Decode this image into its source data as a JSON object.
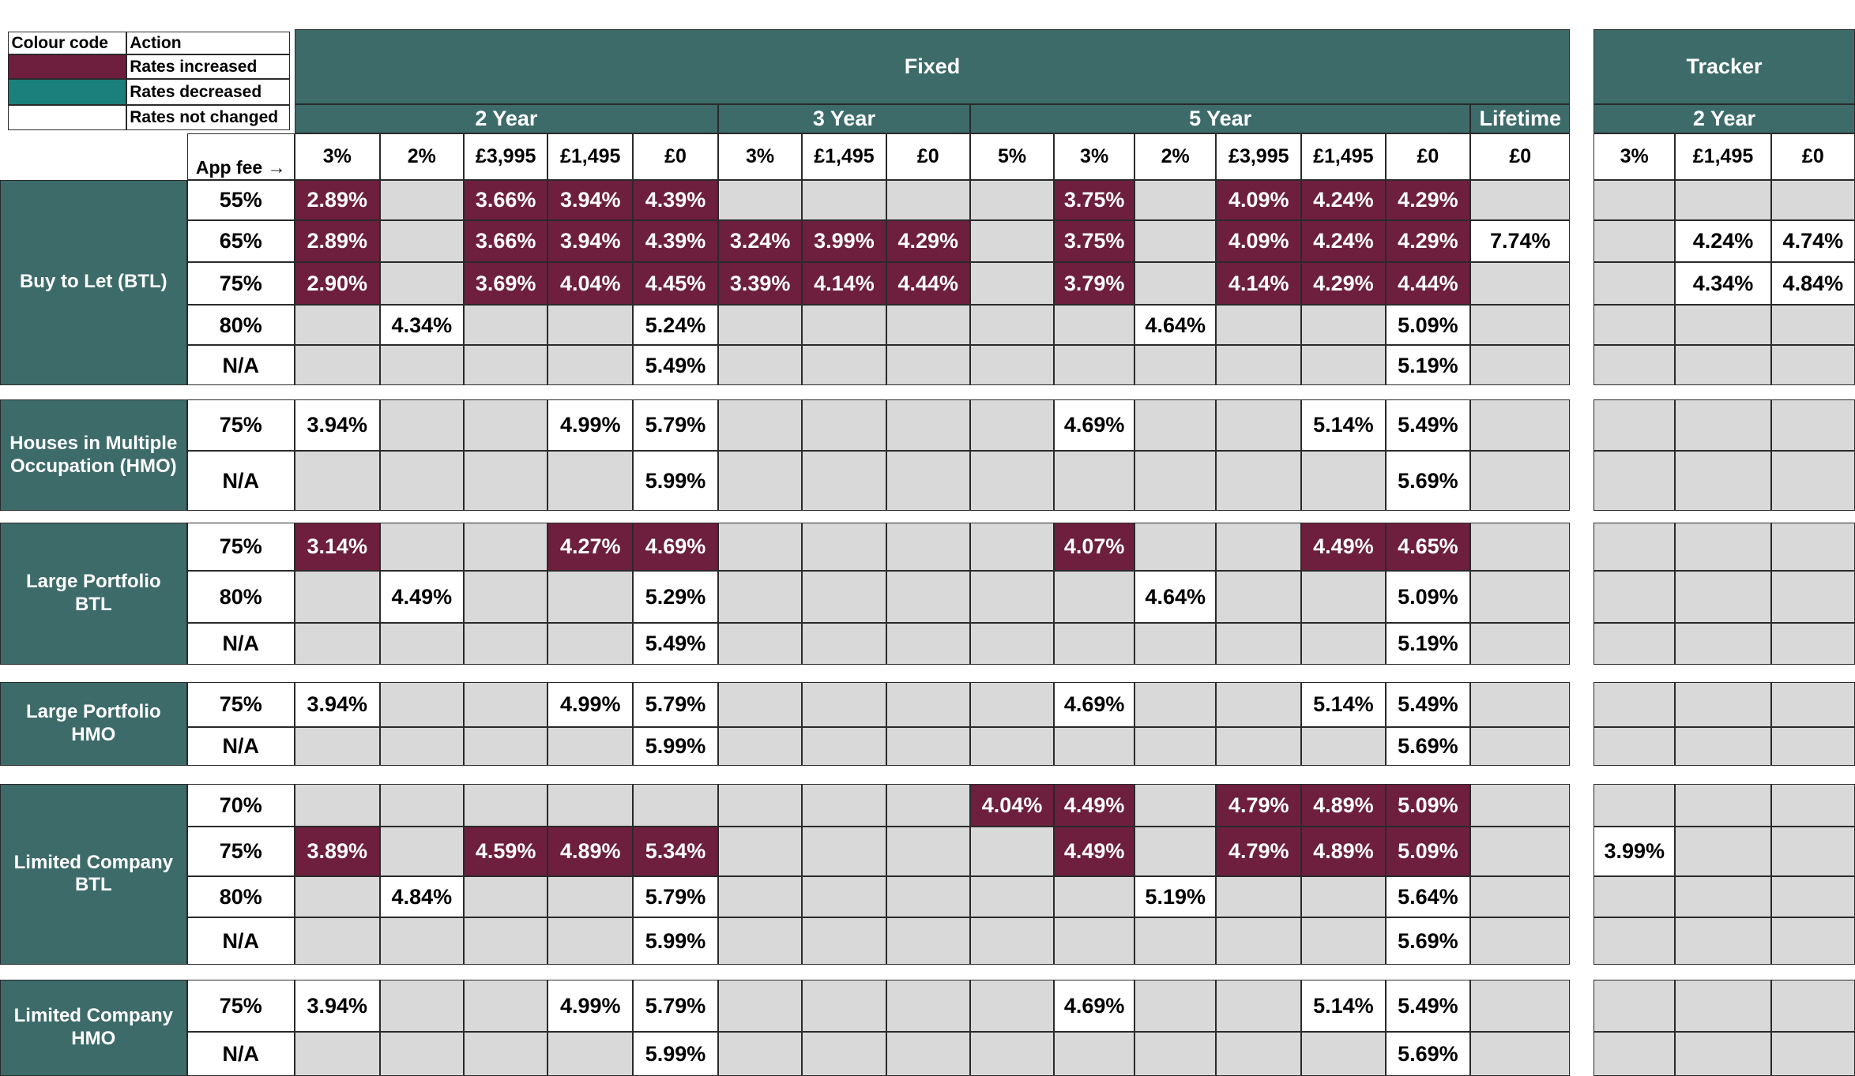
{
  "legend": {
    "columns": [
      "Colour code",
      "Action"
    ],
    "items": [
      {
        "color": "#6d1f3d",
        "label": "Rates increased"
      },
      {
        "color": "#1b7f7c",
        "label": "Rates decreased"
      },
      {
        "color": "#ffffff",
        "label": "Rates not changed"
      }
    ]
  },
  "header": {
    "fee_label": "App fee →",
    "sections": [
      {
        "title": "Fixed",
        "terms": [
          {
            "label": "2 Year",
            "fees": [
              "3%",
              "2%",
              "£3,995",
              "£1,495",
              "£0"
            ]
          },
          {
            "label": "3 Year",
            "fees": [
              "3%",
              "£1,495",
              "£0"
            ]
          },
          {
            "label": "5 Year",
            "fees": [
              "5%",
              "3%",
              "2%",
              "£3,995",
              "£1,495",
              "£0"
            ]
          },
          {
            "label": "Lifetime",
            "fees": [
              "£0"
            ]
          }
        ]
      },
      {
        "title": "Tracker",
        "terms": [
          {
            "label": "2 Year",
            "fees": [
              "3%",
              "£1,495",
              "£0"
            ]
          }
        ]
      }
    ]
  },
  "groups": [
    {
      "label": "Buy to Let (BTL)",
      "rows": [
        {
          "ltv": "55%",
          "cells": [
            {
              "rate": "2.89%",
              "fill": "#6d1f3d"
            },
            null,
            {
              "rate": "3.66%",
              "fill": "#6d1f3d"
            },
            {
              "rate": "3.94%",
              "fill": "#6d1f3d"
            },
            {
              "rate": "4.39%",
              "fill": "#6d1f3d"
            },
            null,
            null,
            null,
            null,
            {
              "rate": "3.75%",
              "fill": "#6d1f3d"
            },
            null,
            {
              "rate": "4.09%",
              "fill": "#6d1f3d"
            },
            {
              "rate": "4.24%",
              "fill": "#6d1f3d"
            },
            {
              "rate": "4.29%",
              "fill": "#6d1f3d"
            },
            null,
            null,
            null,
            null
          ]
        },
        {
          "ltv": "65%",
          "cells": [
            {
              "rate": "2.89%",
              "fill": "#6d1f3d"
            },
            null,
            {
              "rate": "3.66%",
              "fill": "#6d1f3d"
            },
            {
              "rate": "3.94%",
              "fill": "#6d1f3d"
            },
            {
              "rate": "4.39%",
              "fill": "#6d1f3d"
            },
            {
              "rate": "3.24%",
              "fill": "#6d1f3d"
            },
            {
              "rate": "3.99%",
              "fill": "#6d1f3d"
            },
            {
              "rate": "4.29%",
              "fill": "#6d1f3d"
            },
            null,
            {
              "rate": "3.75%",
              "fill": "#6d1f3d"
            },
            null,
            {
              "rate": "4.09%",
              "fill": "#6d1f3d"
            },
            {
              "rate": "4.24%",
              "fill": "#6d1f3d"
            },
            {
              "rate": "4.29%",
              "fill": "#6d1f3d"
            },
            {
              "rate": "7.74%",
              "fill": "#ffffff"
            },
            null,
            {
              "rate": "4.24%",
              "fill": "#ffffff"
            },
            {
              "rate": "4.74%",
              "fill": "#ffffff"
            }
          ]
        },
        {
          "ltv": "75%",
          "cells": [
            {
              "rate": "2.90%",
              "fill": "#6d1f3d"
            },
            null,
            {
              "rate": "3.69%",
              "fill": "#6d1f3d"
            },
            {
              "rate": "4.04%",
              "fill": "#6d1f3d"
            },
            {
              "rate": "4.45%",
              "fill": "#6d1f3d"
            },
            {
              "rate": "3.39%",
              "fill": "#6d1f3d"
            },
            {
              "rate": "4.14%",
              "fill": "#6d1f3d"
            },
            {
              "rate": "4.44%",
              "fill": "#6d1f3d"
            },
            null,
            {
              "rate": "3.79%",
              "fill": "#6d1f3d"
            },
            null,
            {
              "rate": "4.14%",
              "fill": "#6d1f3d"
            },
            {
              "rate": "4.29%",
              "fill": "#6d1f3d"
            },
            {
              "rate": "4.44%",
              "fill": "#6d1f3d"
            },
            null,
            null,
            {
              "rate": "4.34%",
              "fill": "#ffffff"
            },
            {
              "rate": "4.84%",
              "fill": "#ffffff"
            }
          ]
        },
        {
          "ltv": "80%",
          "cells": [
            null,
            {
              "rate": "4.34%",
              "fill": "#ffffff"
            },
            null,
            null,
            {
              "rate": "5.24%",
              "fill": "#ffffff"
            },
            null,
            null,
            null,
            null,
            null,
            {
              "rate": "4.64%",
              "fill": "#ffffff"
            },
            null,
            null,
            {
              "rate": "5.09%",
              "fill": "#ffffff"
            },
            null,
            null,
            null,
            null
          ]
        },
        {
          "ltv": "N/A",
          "cells": [
            null,
            null,
            null,
            null,
            {
              "rate": "5.49%",
              "fill": "#ffffff"
            },
            null,
            null,
            null,
            null,
            null,
            null,
            null,
            null,
            {
              "rate": "5.19%",
              "fill": "#ffffff"
            },
            null,
            null,
            null,
            null
          ]
        }
      ]
    },
    {
      "label": "Houses in Multiple Occupation (HMO)",
      "rows": [
        {
          "ltv": "75%",
          "cells": [
            {
              "rate": "3.94%",
              "fill": "#ffffff"
            },
            null,
            null,
            {
              "rate": "4.99%",
              "fill": "#ffffff"
            },
            {
              "rate": "5.79%",
              "fill": "#ffffff"
            },
            null,
            null,
            null,
            null,
            {
              "rate": "4.69%",
              "fill": "#ffffff"
            },
            null,
            null,
            {
              "rate": "5.14%",
              "fill": "#ffffff"
            },
            {
              "rate": "5.49%",
              "fill": "#ffffff"
            },
            null,
            null,
            null,
            null
          ]
        },
        {
          "ltv": "N/A",
          "cells": [
            null,
            null,
            null,
            null,
            {
              "rate": "5.99%",
              "fill": "#ffffff"
            },
            null,
            null,
            null,
            null,
            null,
            null,
            null,
            null,
            {
              "rate": "5.69%",
              "fill": "#ffffff"
            },
            null,
            null,
            null,
            null
          ]
        }
      ]
    },
    {
      "label": "Large Portfolio BTL",
      "rows": [
        {
          "ltv": "75%",
          "cells": [
            {
              "rate": "3.14%",
              "fill": "#6d1f3d"
            },
            null,
            null,
            {
              "rate": "4.27%",
              "fill": "#6d1f3d"
            },
            {
              "rate": "4.69%",
              "fill": "#6d1f3d"
            },
            null,
            null,
            null,
            null,
            {
              "rate": "4.07%",
              "fill": "#6d1f3d"
            },
            null,
            null,
            {
              "rate": "4.49%",
              "fill": "#6d1f3d"
            },
            {
              "rate": "4.65%",
              "fill": "#6d1f3d"
            },
            null,
            null,
            null,
            null
          ]
        },
        {
          "ltv": "80%",
          "cells": [
            null,
            {
              "rate": "4.49%",
              "fill": "#ffffff"
            },
            null,
            null,
            {
              "rate": "5.29%",
              "fill": "#ffffff"
            },
            null,
            null,
            null,
            null,
            null,
            {
              "rate": "4.64%",
              "fill": "#ffffff"
            },
            null,
            null,
            {
              "rate": "5.09%",
              "fill": "#ffffff"
            },
            null,
            null,
            null,
            null
          ]
        },
        {
          "ltv": "N/A",
          "cells": [
            null,
            null,
            null,
            null,
            {
              "rate": "5.49%",
              "fill": "#ffffff"
            },
            null,
            null,
            null,
            null,
            null,
            null,
            null,
            null,
            {
              "rate": "5.19%",
              "fill": "#ffffff"
            },
            null,
            null,
            null,
            null
          ]
        }
      ]
    },
    {
      "label": "Large Portfolio HMO",
      "rows": [
        {
          "ltv": "75%",
          "cells": [
            {
              "rate": "3.94%",
              "fill": "#ffffff"
            },
            null,
            null,
            {
              "rate": "4.99%",
              "fill": "#ffffff"
            },
            {
              "rate": "5.79%",
              "fill": "#ffffff"
            },
            null,
            null,
            null,
            null,
            {
              "rate": "4.69%",
              "fill": "#ffffff"
            },
            null,
            null,
            {
              "rate": "5.14%",
              "fill": "#ffffff"
            },
            {
              "rate": "5.49%",
              "fill": "#ffffff"
            },
            null,
            null,
            null,
            null
          ]
        },
        {
          "ltv": "N/A",
          "cells": [
            null,
            null,
            null,
            null,
            {
              "rate": "5.99%",
              "fill": "#ffffff"
            },
            null,
            null,
            null,
            null,
            null,
            null,
            null,
            null,
            {
              "rate": "5.69%",
              "fill": "#ffffff"
            },
            null,
            null,
            null,
            null
          ]
        }
      ]
    },
    {
      "label": "Limited Company BTL",
      "rows": [
        {
          "ltv": "70%",
          "cells": [
            null,
            null,
            null,
            null,
            null,
            null,
            null,
            null,
            {
              "rate": "4.04%",
              "fill": "#6d1f3d"
            },
            {
              "rate": "4.49%",
              "fill": "#6d1f3d"
            },
            null,
            {
              "rate": "4.79%",
              "fill": "#6d1f3d"
            },
            {
              "rate": "4.89%",
              "fill": "#6d1f3d"
            },
            {
              "rate": "5.09%",
              "fill": "#6d1f3d"
            },
            null,
            null,
            null,
            null
          ]
        },
        {
          "ltv": "75%",
          "cells": [
            {
              "rate": "3.89%",
              "fill": "#6d1f3d"
            },
            null,
            {
              "rate": "4.59%",
              "fill": "#6d1f3d"
            },
            {
              "rate": "4.89%",
              "fill": "#6d1f3d"
            },
            {
              "rate": "5.34%",
              "fill": "#6d1f3d"
            },
            null,
            null,
            null,
            null,
            {
              "rate": "4.49%",
              "fill": "#6d1f3d"
            },
            null,
            {
              "rate": "4.79%",
              "fill": "#6d1f3d"
            },
            {
              "rate": "4.89%",
              "fill": "#6d1f3d"
            },
            {
              "rate": "5.09%",
              "fill": "#6d1f3d"
            },
            null,
            {
              "rate": "3.99%",
              "fill": "#ffffff"
            },
            null,
            null
          ]
        },
        {
          "ltv": "80%",
          "cells": [
            null,
            {
              "rate": "4.84%",
              "fill": "#ffffff"
            },
            null,
            null,
            {
              "rate": "5.79%",
              "fill": "#ffffff"
            },
            null,
            null,
            null,
            null,
            null,
            {
              "rate": "5.19%",
              "fill": "#ffffff"
            },
            null,
            null,
            {
              "rate": "5.64%",
              "fill": "#ffffff"
            },
            null,
            null,
            null,
            null
          ]
        },
        {
          "ltv": "N/A",
          "cells": [
            null,
            null,
            null,
            null,
            {
              "rate": "5.99%",
              "fill": "#ffffff"
            },
            null,
            null,
            null,
            null,
            null,
            null,
            null,
            null,
            {
              "rate": "5.69%",
              "fill": "#ffffff"
            },
            null,
            null,
            null,
            null
          ]
        }
      ]
    },
    {
      "label": "Limited Company HMO",
      "rows": [
        {
          "ltv": "75%",
          "cells": [
            {
              "rate": "3.94%",
              "fill": "#ffffff"
            },
            null,
            null,
            {
              "rate": "4.99%",
              "fill": "#ffffff"
            },
            {
              "rate": "5.79%",
              "fill": "#ffffff"
            },
            null,
            null,
            null,
            null,
            {
              "rate": "4.69%",
              "fill": "#ffffff"
            },
            null,
            null,
            {
              "rate": "5.14%",
              "fill": "#ffffff"
            },
            {
              "rate": "5.49%",
              "fill": "#ffffff"
            },
            null,
            null,
            null,
            null
          ]
        },
        {
          "ltv": "N/A",
          "cells": [
            null,
            null,
            null,
            null,
            {
              "rate": "5.99%",
              "fill": "#ffffff"
            },
            null,
            null,
            null,
            null,
            null,
            null,
            null,
            null,
            {
              "rate": "5.69%",
              "fill": "#ffffff"
            },
            null,
            null,
            null,
            null
          ]
        }
      ]
    }
  ]
}
